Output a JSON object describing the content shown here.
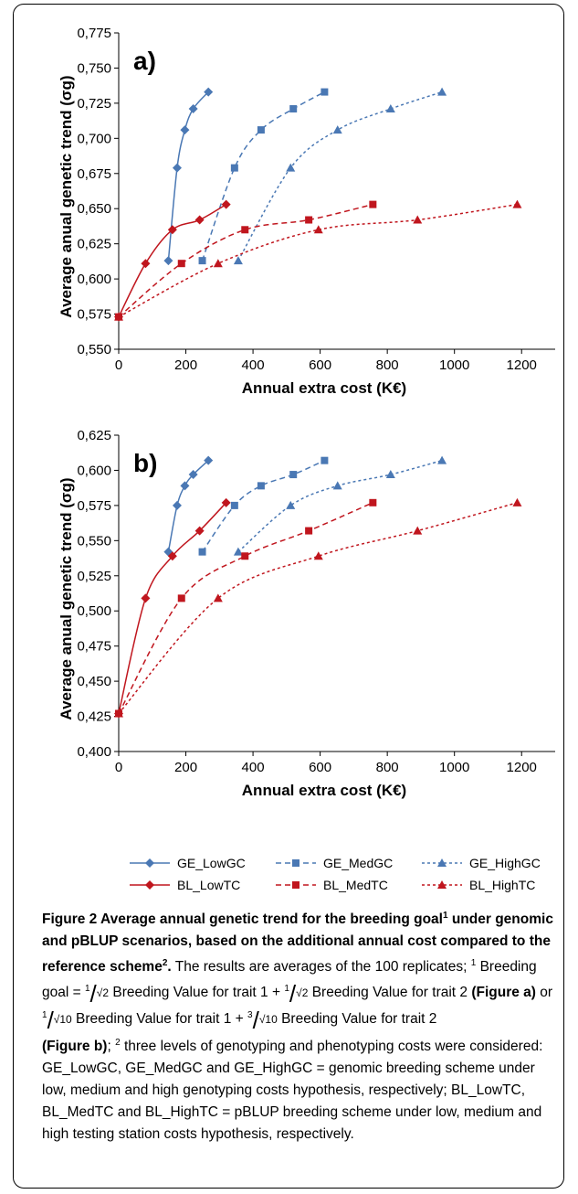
{
  "chart_data": [
    {
      "type": "line",
      "panel_label": "a)",
      "xlabel": "Annual extra cost (K€)",
      "ylabel": "Average anual genetic trend (σg)",
      "xlim": [
        0,
        1300
      ],
      "ylim": [
        0.55,
        0.775
      ],
      "x_ticks": [
        0,
        200,
        400,
        600,
        800,
        1000,
        1200
      ],
      "y_ticks": [
        "0,550",
        "0,575",
        "0,600",
        "0,625",
        "0,650",
        "0,675",
        "0,700",
        "0,725",
        "0,750",
        "0,775"
      ],
      "series": [
        {
          "name": "GE_LowGC",
          "color": "#4a78b4",
          "dash": "solid",
          "marker": "diamond",
          "x": [
            148,
            174,
            197,
            222,
            267
          ],
          "y": [
            0.613,
            0.679,
            0.706,
            0.721,
            0.733
          ],
          "origin": false
        },
        {
          "name": "GE_MedGC",
          "color": "#4a78b4",
          "dash": "dashed",
          "marker": "square",
          "x": [
            249,
            345,
            424,
            520,
            613
          ],
          "y": [
            0.613,
            0.679,
            0.706,
            0.721,
            0.733
          ],
          "origin": false
        },
        {
          "name": "GE_HighGC",
          "color": "#4a78b4",
          "dash": "dotted",
          "marker": "triangle",
          "x": [
            356,
            512,
            652,
            810,
            963
          ],
          "y": [
            0.613,
            0.679,
            0.706,
            0.721,
            0.733
          ],
          "origin": false
        },
        {
          "name": "BL_LowTC",
          "color": "#c0161e",
          "dash": "solid",
          "marker": "diamond",
          "x": [
            0,
            80,
            160,
            241,
            320
          ],
          "y": [
            0.573,
            0.611,
            0.635,
            0.642,
            0.653
          ],
          "origin": true
        },
        {
          "name": "BL_MedTC",
          "color": "#c0161e",
          "dash": "dashed",
          "marker": "square",
          "x": [
            0,
            187,
            376,
            566,
            757
          ],
          "y": [
            0.573,
            0.611,
            0.635,
            0.642,
            0.653
          ],
          "origin": true
        },
        {
          "name": "BL_HighTC",
          "color": "#c0161e",
          "dash": "dotted",
          "marker": "triangle",
          "x": [
            0,
            296,
            595,
            890,
            1187
          ],
          "y": [
            0.573,
            0.611,
            0.635,
            0.642,
            0.653
          ],
          "origin": true
        }
      ]
    },
    {
      "type": "line",
      "panel_label": "b)",
      "xlabel": "Annual extra cost (K€)",
      "ylabel": "Average anual genetic trend (σg)",
      "xlim": [
        0,
        1300
      ],
      "ylim": [
        0.4,
        0.625
      ],
      "x_ticks": [
        0,
        200,
        400,
        600,
        800,
        1000,
        1200
      ],
      "y_ticks": [
        "0,400",
        "0,425",
        "0,450",
        "0,475",
        "0,500",
        "0,525",
        "0,550",
        "0,575",
        "0,600",
        "0,625"
      ],
      "series": [
        {
          "name": "GE_LowGC",
          "color": "#4a78b4",
          "dash": "solid",
          "marker": "diamond",
          "x": [
            148,
            174,
            197,
            222,
            267
          ],
          "y": [
            0.542,
            0.575,
            0.589,
            0.597,
            0.607
          ],
          "origin": false
        },
        {
          "name": "GE_MedGC",
          "color": "#4a78b4",
          "dash": "dashed",
          "marker": "square",
          "x": [
            249,
            345,
            424,
            520,
            613
          ],
          "y": [
            0.542,
            0.575,
            0.589,
            0.597,
            0.607
          ],
          "origin": false
        },
        {
          "name": "GE_HighGC",
          "color": "#4a78b4",
          "dash": "dotted",
          "marker": "triangle",
          "x": [
            356,
            512,
            652,
            810,
            963
          ],
          "y": [
            0.542,
            0.575,
            0.589,
            0.597,
            0.607
          ],
          "origin": false
        },
        {
          "name": "BL_LowTC",
          "color": "#c0161e",
          "dash": "solid",
          "marker": "diamond",
          "x": [
            0,
            80,
            160,
            241,
            320
          ],
          "y": [
            0.427,
            0.509,
            0.539,
            0.557,
            0.577
          ],
          "origin": true
        },
        {
          "name": "BL_MedTC",
          "color": "#c0161e",
          "dash": "dashed",
          "marker": "square",
          "x": [
            0,
            187,
            376,
            566,
            757
          ],
          "y": [
            0.427,
            0.509,
            0.539,
            0.557,
            0.577
          ],
          "origin": true
        },
        {
          "name": "BL_HighTC",
          "color": "#c0161e",
          "dash": "dotted",
          "marker": "triangle",
          "x": [
            0,
            296,
            595,
            890,
            1187
          ],
          "y": [
            0.427,
            0.509,
            0.539,
            0.557,
            0.577
          ],
          "origin": true
        }
      ]
    }
  ],
  "legend": [
    {
      "label": "GE_LowGC",
      "color": "#4a78b4",
      "dash": "solid",
      "marker": "diamond"
    },
    {
      "label": "GE_MedGC",
      "color": "#4a78b4",
      "dash": "dashed",
      "marker": "square"
    },
    {
      "label": "GE_HighGC",
      "color": "#4a78b4",
      "dash": "dotted",
      "marker": "triangle"
    },
    {
      "label": "BL_LowTC",
      "color": "#c0161e",
      "dash": "solid",
      "marker": "diamond"
    },
    {
      "label": "BL_MedTC",
      "color": "#c0161e",
      "dash": "dashed",
      "marker": "square"
    },
    {
      "label": "BL_HighTC",
      "color": "#c0161e",
      "dash": "dotted",
      "marker": "triangle"
    }
  ],
  "caption": {
    "title": "Figure 2 Average annual genetic trend for the breeding goal",
    "title_sup": "1",
    "title_rest": " under genomic and pBLUP scenarios, based on the additional annual cost compared to the reference scheme",
    "title_sup2": "2",
    "title_end": ".",
    "text1": " The results are averages of the 100 replicates; ",
    "sup1": "1",
    "text2": " Breeding goal = ",
    "one": "1",
    "sqrt2": "√2",
    "bv1": " Breeding Value for trait 1 + ",
    "bv2": " Breeding Value for trait 2 ",
    "fig_a": "(Figure a)",
    "or": " or",
    "sqrt10": "√10",
    "three": "3",
    "fig_b": "(Figure b)",
    "text3": "; ",
    "sup2": "2",
    "text4": " three levels of genotyping and phenotyping costs were considered: GE_LowGC, GE_MedGC and GE_HighGC = genomic breeding scheme under low, medium and high genotyping costs hypothesis, respectively; BL_LowTC, BL_MedTC and BL_HighTC = pBLUP breeding scheme under low, medium and high testing station costs hypothesis, respectively."
  }
}
